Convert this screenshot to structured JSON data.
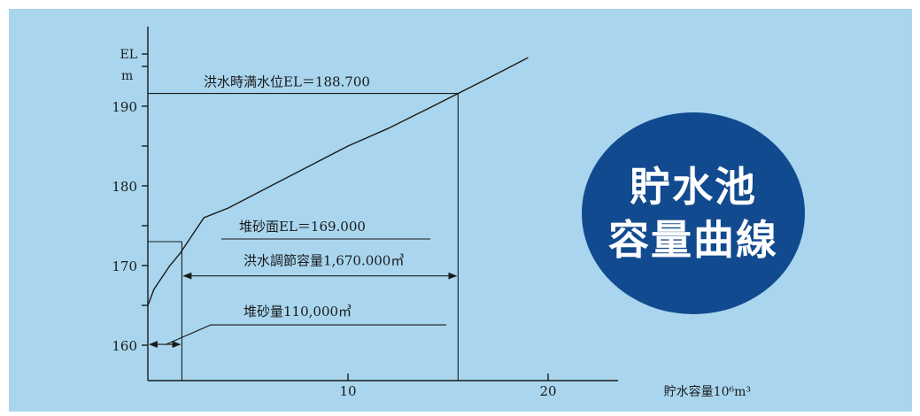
{
  "chart_data": {
    "type": "line",
    "title": "",
    "xlabel": "貯水容量10⁶m³",
    "ylabel": "EL",
    "yunit": "m",
    "xlim": [
      0,
      20
    ],
    "ylim": [
      160,
      190
    ],
    "xticks": [
      10,
      20
    ],
    "yticks": [
      160,
      170,
      180,
      190
    ],
    "grid": false,
    "series": [
      {
        "x": [
          0,
          0.3,
          0.7,
          1.1,
          1.6,
          2.0,
          2.8,
          4,
          6,
          8,
          10,
          12,
          14,
          15.5,
          17,
          19
        ],
        "y": [
          165,
          167,
          168.5,
          170,
          171.5,
          173,
          176,
          177.2,
          179.8,
          182.4,
          185,
          187.2,
          189.7,
          191.6,
          193.5,
          196.1
        ]
      }
    ],
    "annotations": [
      {
        "text": "洪水時満水位EL＝188.700"
      },
      {
        "text": "堆砂面EL＝169.000"
      },
      {
        "text": "洪水調節容量1,670.000㎥"
      },
      {
        "text": "堆砂量110,000㎥"
      }
    ],
    "reference_points": {
      "flood_level": {
        "x": 15.5,
        "y": 191.6
      },
      "sediment_level": {
        "x": 1.7,
        "y": 173
      },
      "sediment_arrow_y": 160.1,
      "flood_control_arrow_y": 168.7
    }
  },
  "badge": {
    "line1": "貯水池",
    "line2": "容量曲線",
    "color": "#124a8f"
  },
  "colors": {
    "background": "#a9d6ee",
    "ink": "#1a1a1a"
  }
}
